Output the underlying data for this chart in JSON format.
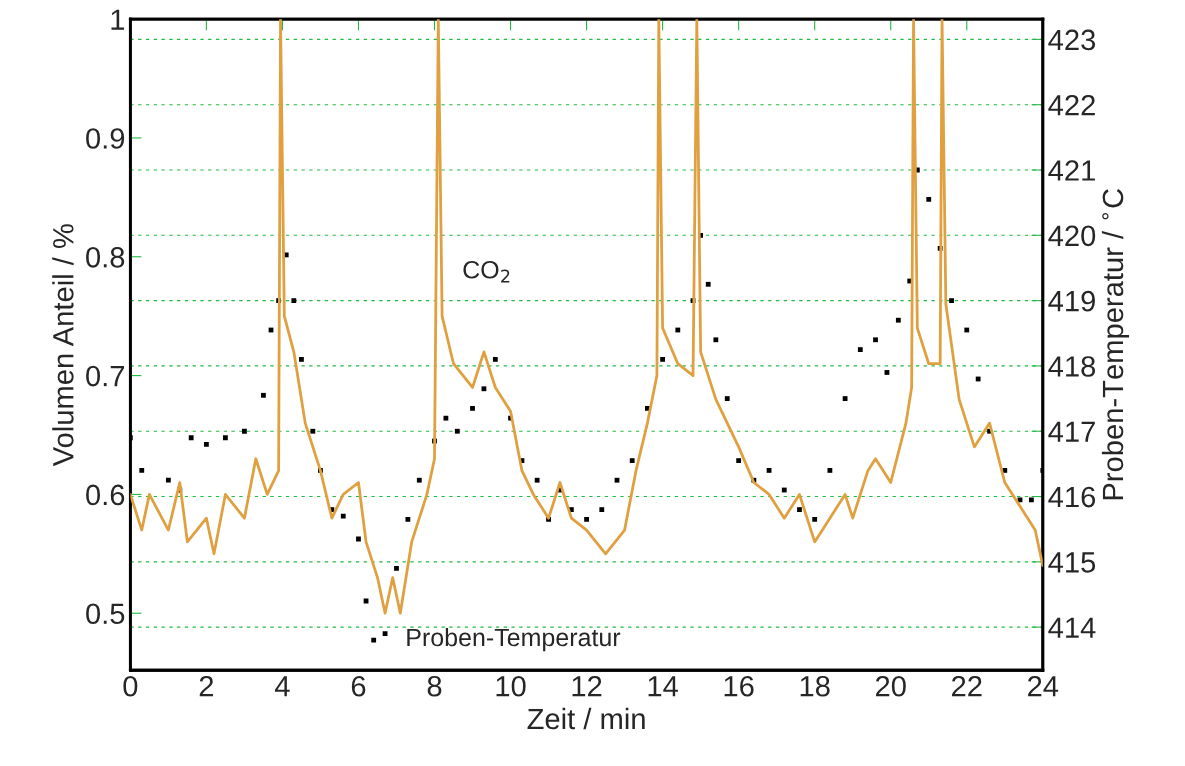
{
  "chart_data": {
    "type": "line",
    "xlabel": "Zeit / min",
    "ylabel": "Volumen Anteil / %",
    "y2label": "Proben-Temperatur / $^{∘}$C",
    "xlim": [
      0,
      24
    ],
    "xticks": [
      0,
      2,
      4,
      6,
      8,
      10,
      12,
      14,
      16,
      18,
      20,
      22,
      24
    ],
    "ylim": [
      0.452,
      1.0
    ],
    "yticks": [
      0.5,
      0.6,
      0.7,
      0.8,
      0.9,
      1
    ],
    "y2lim": [
      413.34,
      423.31
    ],
    "y2ticks": [
      414,
      415,
      416,
      417,
      418,
      419,
      420,
      421,
      422,
      423
    ],
    "grid": "y",
    "marker": "none",
    "line_style": "solid",
    "annotations": [
      "CO$_{2}$",
      "Proben-Temperatur"
    ],
    "series": [
      {
        "color": "#e0a040",
        "x": [
          0,
          0.3,
          0.5,
          1,
          1.3,
          1.5,
          2,
          2.2,
          2.5,
          3,
          3.3,
          3.6,
          3.9,
          3.95,
          4.05,
          4.3,
          4.6,
          5,
          5.3,
          5.6,
          6,
          6.2,
          6.5,
          6.7,
          6.9,
          7.1,
          7.4,
          7.8,
          8,
          8.1,
          8.2,
          8.5,
          9,
          9.3,
          9.6,
          10,
          10.3,
          10.6,
          11,
          11.3,
          11.6,
          12,
          12.5,
          13,
          13.3,
          13.6,
          13.85,
          13.9,
          14,
          14.4,
          14.8,
          14.9,
          15,
          15.4,
          16,
          16.4,
          16.8,
          17.2,
          17.6,
          18,
          18.4,
          18.8,
          19,
          19.4,
          19.6,
          20,
          20.4,
          20.55,
          20.6,
          20.7,
          21,
          21.3,
          21.35,
          21.45,
          21.8,
          22.2,
          22.6,
          23,
          23.4,
          23.8,
          24
        ],
        "values": [
          0.6,
          0.57,
          0.6,
          0.57,
          0.61,
          0.56,
          0.58,
          0.55,
          0.6,
          0.58,
          0.63,
          0.6,
          0.62,
          1.0,
          0.75,
          0.72,
          0.66,
          0.62,
          0.58,
          0.6,
          0.61,
          0.56,
          0.53,
          0.5,
          0.53,
          0.5,
          0.56,
          0.6,
          0.63,
          1.0,
          0.75,
          0.71,
          0.69,
          0.72,
          0.69,
          0.67,
          0.62,
          0.6,
          0.58,
          0.61,
          0.58,
          0.57,
          0.55,
          0.57,
          0.62,
          0.66,
          0.7,
          1.0,
          0.74,
          0.71,
          0.7,
          1.0,
          0.72,
          0.68,
          0.64,
          0.61,
          0.6,
          0.58,
          0.6,
          0.56,
          0.58,
          0.6,
          0.58,
          0.62,
          0.63,
          0.61,
          0.66,
          0.69,
          1.0,
          0.74,
          0.71,
          0.71,
          1.0,
          0.76,
          0.68,
          0.64,
          0.66,
          0.61,
          0.59,
          0.57,
          0.54
        ]
      },
      {
        "type": "scatter",
        "axis": "y2",
        "color": "#000000",
        "marker": "square",
        "x": [
          0,
          0.3,
          1,
          1.3,
          1.6,
          2,
          2.5,
          3,
          3.5,
          3.7,
          3.9,
          4.1,
          4.3,
          4.5,
          4.8,
          5,
          5.3,
          5.6,
          6,
          6.2,
          6.4,
          6.7,
          7,
          7.3,
          7.6,
          8,
          8.3,
          8.6,
          9,
          9.3,
          9.6,
          10,
          10.3,
          10.7,
          11,
          11.3,
          11.6,
          12,
          12.4,
          12.8,
          13.2,
          13.6,
          14,
          14.4,
          14.8,
          15,
          15.2,
          15.4,
          15.7,
          16,
          16.4,
          16.8,
          17.2,
          17.6,
          18,
          18.4,
          18.8,
          19.2,
          19.6,
          19.9,
          20.2,
          20.5,
          20.7,
          21,
          21.3,
          21.6,
          22,
          22.3,
          22.6,
          23,
          23.4,
          23.7,
          24
        ],
        "values": [
          416.9,
          416.4,
          416.25,
          416.1,
          416.9,
          416.8,
          416.9,
          417.0,
          417.55,
          418.55,
          419.0,
          419.7,
          419.0,
          418.1,
          417.0,
          416.4,
          415.8,
          415.7,
          415.35,
          414.4,
          413.8,
          413.9,
          414.9,
          415.65,
          416.25,
          416.85,
          417.2,
          417.0,
          417.35,
          417.65,
          418.1,
          417.2,
          416.55,
          416.25,
          415.65,
          416.1,
          415.8,
          415.65,
          415.8,
          416.25,
          416.55,
          417.35,
          418.1,
          418.55,
          419.0,
          420.0,
          419.25,
          418.4,
          417.5,
          416.55,
          416.25,
          416.4,
          416.1,
          415.8,
          415.65,
          416.4,
          417.5,
          418.25,
          418.4,
          417.9,
          418.7,
          419.3,
          421.0,
          420.55,
          419.8,
          419.0,
          418.55,
          417.8,
          417.0,
          416.4,
          415.95,
          415.95,
          416.4
        ]
      }
    ]
  }
}
